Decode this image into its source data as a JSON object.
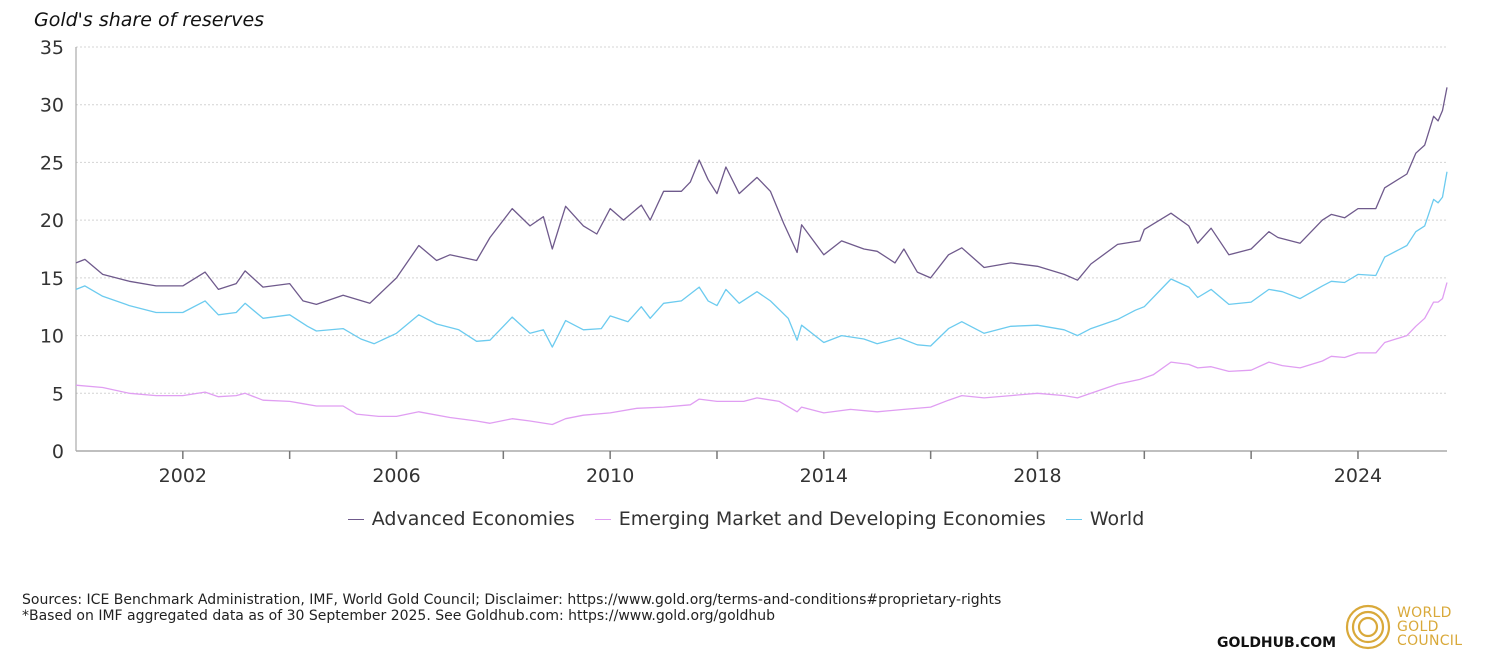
{
  "chart_data": {
    "type": "line",
    "title": "Gold's share of reserves",
    "xlabel": "",
    "ylabel": "",
    "ylim": [
      0,
      35
    ],
    "xlim": [
      "2000-01",
      "2025-09"
    ],
    "yticks": [
      "0",
      "5",
      "10",
      "15",
      "20",
      "25",
      "30",
      "35"
    ],
    "xticks": [
      "2002",
      "2006",
      "2010",
      "2014",
      "2018",
      "2024"
    ],
    "grid": true,
    "legend": "bottom",
    "series": [
      {
        "name": "Advanced Economies",
        "color": "#6f5a8c",
        "points": [
          [
            "2000-01",
            16.3
          ],
          [
            "2000-03",
            16.6
          ],
          [
            "2000-07",
            15.3
          ],
          [
            "2001-01",
            14.7
          ],
          [
            "2001-07",
            14.3
          ],
          [
            "2002-01",
            14.3
          ],
          [
            "2002-06",
            15.5
          ],
          [
            "2002-09",
            14.0
          ],
          [
            "2003-01",
            14.5
          ],
          [
            "2003-03",
            15.6
          ],
          [
            "2003-07",
            14.2
          ],
          [
            "2004-01",
            14.5
          ],
          [
            "2004-04",
            13.0
          ],
          [
            "2004-07",
            12.7
          ],
          [
            "2005-01",
            13.5
          ],
          [
            "2005-07",
            12.8
          ],
          [
            "2006-01",
            15.0
          ],
          [
            "2006-06",
            17.8
          ],
          [
            "2006-10",
            16.5
          ],
          [
            "2007-01",
            17.0
          ],
          [
            "2007-07",
            16.5
          ],
          [
            "2007-10",
            18.5
          ],
          [
            "2008-03",
            21.0
          ],
          [
            "2008-07",
            19.5
          ],
          [
            "2008-10",
            20.3
          ],
          [
            "2008-12",
            17.5
          ],
          [
            "2009-03",
            21.2
          ],
          [
            "2009-07",
            19.5
          ],
          [
            "2009-10",
            18.8
          ],
          [
            "2010-01",
            21.0
          ],
          [
            "2010-04",
            20.0
          ],
          [
            "2010-08",
            21.3
          ],
          [
            "2010-10",
            20.0
          ],
          [
            "2011-01",
            22.5
          ],
          [
            "2011-05",
            22.5
          ],
          [
            "2011-07",
            23.3
          ],
          [
            "2011-09",
            25.2
          ],
          [
            "2011-11",
            23.5
          ],
          [
            "2012-01",
            22.3
          ],
          [
            "2012-03",
            24.6
          ],
          [
            "2012-06",
            22.3
          ],
          [
            "2012-10",
            23.7
          ],
          [
            "2013-01",
            22.5
          ],
          [
            "2013-04",
            19.7
          ],
          [
            "2013-07",
            17.2
          ],
          [
            "2013-08",
            19.6
          ],
          [
            "2014-01",
            17.0
          ],
          [
            "2014-05",
            18.2
          ],
          [
            "2014-10",
            17.5
          ],
          [
            "2015-01",
            17.3
          ],
          [
            "2015-05",
            16.3
          ],
          [
            "2015-07",
            17.5
          ],
          [
            "2015-10",
            15.5
          ],
          [
            "2016-01",
            15.0
          ],
          [
            "2016-05",
            17.0
          ],
          [
            "2016-08",
            17.6
          ],
          [
            "2017-01",
            15.9
          ],
          [
            "2017-07",
            16.3
          ],
          [
            "2018-01",
            16.0
          ],
          [
            "2018-07",
            15.3
          ],
          [
            "2018-10",
            14.8
          ],
          [
            "2019-01",
            16.2
          ],
          [
            "2019-07",
            17.9
          ],
          [
            "2019-12",
            18.2
          ],
          [
            "2020-01",
            19.2
          ],
          [
            "2020-07",
            20.6
          ],
          [
            "2020-11",
            19.5
          ],
          [
            "2021-01",
            18.0
          ],
          [
            "2021-04",
            19.3
          ],
          [
            "2021-08",
            17.0
          ],
          [
            "2022-01",
            17.5
          ],
          [
            "2022-05",
            19.0
          ],
          [
            "2022-07",
            18.5
          ],
          [
            "2022-12",
            18.0
          ],
          [
            "2023-05",
            20.0
          ],
          [
            "2023-07",
            20.5
          ],
          [
            "2023-10",
            20.2
          ],
          [
            "2024-01",
            21.0
          ],
          [
            "2024-05",
            21.0
          ],
          [
            "2024-07",
            22.8
          ],
          [
            "2024-12",
            24.0
          ],
          [
            "2025-02",
            25.8
          ],
          [
            "2025-04",
            26.5
          ],
          [
            "2025-06",
            29.0
          ],
          [
            "2025-07",
            28.6
          ],
          [
            "2025-08",
            29.5
          ],
          [
            "2025-09",
            31.5
          ]
        ]
      },
      {
        "name": "Emerging Market and Developing Economies",
        "color": "#e09ef2",
        "points": [
          [
            "2000-01",
            5.7
          ],
          [
            "2000-07",
            5.5
          ],
          [
            "2001-01",
            5.0
          ],
          [
            "2001-07",
            4.8
          ],
          [
            "2002-01",
            4.8
          ],
          [
            "2002-06",
            5.1
          ],
          [
            "2002-09",
            4.7
          ],
          [
            "2003-01",
            4.8
          ],
          [
            "2003-03",
            5.0
          ],
          [
            "2003-07",
            4.4
          ],
          [
            "2004-01",
            4.3
          ],
          [
            "2004-04",
            4.1
          ],
          [
            "2004-07",
            3.9
          ],
          [
            "2005-01",
            3.9
          ],
          [
            "2005-04",
            3.2
          ],
          [
            "2005-09",
            3.0
          ],
          [
            "2006-01",
            3.0
          ],
          [
            "2006-06",
            3.4
          ],
          [
            "2007-01",
            2.9
          ],
          [
            "2007-07",
            2.6
          ],
          [
            "2007-10",
            2.4
          ],
          [
            "2008-03",
            2.8
          ],
          [
            "2008-07",
            2.6
          ],
          [
            "2008-12",
            2.3
          ],
          [
            "2009-03",
            2.8
          ],
          [
            "2009-07",
            3.1
          ],
          [
            "2010-01",
            3.3
          ],
          [
            "2010-07",
            3.7
          ],
          [
            "2011-01",
            3.8
          ],
          [
            "2011-07",
            4.0
          ],
          [
            "2011-09",
            4.5
          ],
          [
            "2012-01",
            4.3
          ],
          [
            "2012-07",
            4.3
          ],
          [
            "2012-10",
            4.6
          ],
          [
            "2013-03",
            4.3
          ],
          [
            "2013-07",
            3.4
          ],
          [
            "2013-08",
            3.8
          ],
          [
            "2014-01",
            3.3
          ],
          [
            "2014-07",
            3.6
          ],
          [
            "2015-01",
            3.4
          ],
          [
            "2015-07",
            3.6
          ],
          [
            "2016-01",
            3.8
          ],
          [
            "2016-05",
            4.4
          ],
          [
            "2016-08",
            4.8
          ],
          [
            "2017-01",
            4.6
          ],
          [
            "2017-07",
            4.8
          ],
          [
            "2018-01",
            5.0
          ],
          [
            "2018-07",
            4.8
          ],
          [
            "2018-10",
            4.6
          ],
          [
            "2019-01",
            5.0
          ],
          [
            "2019-07",
            5.8
          ],
          [
            "2019-12",
            6.2
          ],
          [
            "2020-03",
            6.6
          ],
          [
            "2020-07",
            7.7
          ],
          [
            "2020-11",
            7.5
          ],
          [
            "2021-01",
            7.2
          ],
          [
            "2021-04",
            7.3
          ],
          [
            "2021-08",
            6.9
          ],
          [
            "2022-01",
            7.0
          ],
          [
            "2022-05",
            7.7
          ],
          [
            "2022-08",
            7.4
          ],
          [
            "2022-12",
            7.2
          ],
          [
            "2023-05",
            7.8
          ],
          [
            "2023-07",
            8.2
          ],
          [
            "2023-10",
            8.1
          ],
          [
            "2024-01",
            8.5
          ],
          [
            "2024-05",
            8.5
          ],
          [
            "2024-07",
            9.4
          ],
          [
            "2024-12",
            10.0
          ],
          [
            "2025-02",
            10.8
          ],
          [
            "2025-04",
            11.5
          ],
          [
            "2025-06",
            12.9
          ],
          [
            "2025-07",
            12.9
          ],
          [
            "2025-08",
            13.2
          ],
          [
            "2025-09",
            14.6
          ]
        ]
      },
      {
        "name": "World",
        "color": "#6ccbef",
        "points": [
          [
            "2000-01",
            14.0
          ],
          [
            "2000-03",
            14.3
          ],
          [
            "2000-07",
            13.4
          ],
          [
            "2001-01",
            12.6
          ],
          [
            "2001-07",
            12.0
          ],
          [
            "2002-01",
            12.0
          ],
          [
            "2002-06",
            13.0
          ],
          [
            "2002-09",
            11.8
          ],
          [
            "2003-01",
            12.0
          ],
          [
            "2003-03",
            12.8
          ],
          [
            "2003-07",
            11.5
          ],
          [
            "2004-01",
            11.8
          ],
          [
            "2004-05",
            10.8
          ],
          [
            "2004-07",
            10.4
          ],
          [
            "2005-01",
            10.6
          ],
          [
            "2005-05",
            9.7
          ],
          [
            "2005-08",
            9.3
          ],
          [
            "2006-01",
            10.2
          ],
          [
            "2006-06",
            11.8
          ],
          [
            "2006-10",
            11.0
          ],
          [
            "2007-03",
            10.5
          ],
          [
            "2007-07",
            9.5
          ],
          [
            "2007-10",
            9.6
          ],
          [
            "2008-03",
            11.6
          ],
          [
            "2008-07",
            10.2
          ],
          [
            "2008-10",
            10.5
          ],
          [
            "2008-12",
            9.0
          ],
          [
            "2009-03",
            11.3
          ],
          [
            "2009-07",
            10.5
          ],
          [
            "2009-11",
            10.6
          ],
          [
            "2010-01",
            11.7
          ],
          [
            "2010-05",
            11.2
          ],
          [
            "2010-08",
            12.5
          ],
          [
            "2010-10",
            11.5
          ],
          [
            "2011-01",
            12.8
          ],
          [
            "2011-05",
            13.0
          ],
          [
            "2011-09",
            14.2
          ],
          [
            "2011-11",
            13.0
          ],
          [
            "2012-01",
            12.6
          ],
          [
            "2012-03",
            14.0
          ],
          [
            "2012-06",
            12.8
          ],
          [
            "2012-10",
            13.8
          ],
          [
            "2013-01",
            13.0
          ],
          [
            "2013-05",
            11.5
          ],
          [
            "2013-07",
            9.6
          ],
          [
            "2013-08",
            10.9
          ],
          [
            "2014-01",
            9.4
          ],
          [
            "2014-05",
            10.0
          ],
          [
            "2014-10",
            9.7
          ],
          [
            "2015-01",
            9.3
          ],
          [
            "2015-06",
            9.8
          ],
          [
            "2015-10",
            9.2
          ],
          [
            "2016-01",
            9.1
          ],
          [
            "2016-05",
            10.6
          ],
          [
            "2016-08",
            11.2
          ],
          [
            "2017-01",
            10.2
          ],
          [
            "2017-07",
            10.8
          ],
          [
            "2018-01",
            10.9
          ],
          [
            "2018-07",
            10.5
          ],
          [
            "2018-10",
            10.0
          ],
          [
            "2019-01",
            10.6
          ],
          [
            "2019-07",
            11.4
          ],
          [
            "2019-11",
            12.2
          ],
          [
            "2020-01",
            12.5
          ],
          [
            "2020-07",
            14.9
          ],
          [
            "2020-11",
            14.2
          ],
          [
            "2021-01",
            13.3
          ],
          [
            "2021-04",
            14.0
          ],
          [
            "2021-08",
            12.7
          ],
          [
            "2022-01",
            12.9
          ],
          [
            "2022-05",
            14.0
          ],
          [
            "2022-08",
            13.8
          ],
          [
            "2022-12",
            13.2
          ],
          [
            "2023-05",
            14.3
          ],
          [
            "2023-07",
            14.7
          ],
          [
            "2023-10",
            14.6
          ],
          [
            "2024-01",
            15.3
          ],
          [
            "2024-05",
            15.2
          ],
          [
            "2024-07",
            16.8
          ],
          [
            "2024-12",
            17.8
          ],
          [
            "2025-02",
            19.0
          ],
          [
            "2025-04",
            19.5
          ],
          [
            "2025-06",
            21.8
          ],
          [
            "2025-07",
            21.5
          ],
          [
            "2025-08",
            22.0
          ],
          [
            "2025-09",
            24.2
          ]
        ]
      }
    ]
  },
  "footer": {
    "sources": "Sources: ICE Benchmark Administration, IMF, World Gold Council; Disclaimer: https://www.gold.org/terms-and-conditions#proprietary-rights",
    "note": "*Based on IMF aggregated data as of 30 September 2025. See Goldhub.com: https://www.gold.org/goldhub",
    "goldhub": "GOLDHUB.COM"
  },
  "logo": {
    "lines": [
      "WORLD",
      "GOLD",
      "COUNCIL"
    ],
    "color": "#d9a93a"
  }
}
